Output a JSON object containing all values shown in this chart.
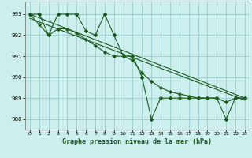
{
  "title": "Graphe pression niveau de la mer (hPa)",
  "bg_color": "#cceeed",
  "grid_color": "#99cccc",
  "line_color": "#1a5c1a",
  "xlim": [
    -0.5,
    23.5
  ],
  "ylim": [
    987.5,
    993.6
  ],
  "yticks": [
    988,
    989,
    990,
    991,
    992,
    993
  ],
  "xticks": [
    0,
    1,
    2,
    3,
    4,
    5,
    6,
    7,
    8,
    9,
    10,
    11,
    12,
    13,
    14,
    15,
    16,
    17,
    18,
    19,
    20,
    21,
    22,
    23
  ],
  "series_main": [
    993.0,
    993.0,
    992.0,
    993.0,
    993.0,
    993.0,
    992.2,
    992.0,
    993.0,
    992.0,
    991.0,
    991.0,
    990.0,
    988.0,
    989.0,
    989.0,
    989.0,
    989.0,
    989.0,
    989.0,
    989.0,
    988.0,
    989.0,
    989.0
  ],
  "series2": [
    993.0,
    992.5,
    992.0,
    992.3,
    992.3,
    992.1,
    991.8,
    991.5,
    991.2,
    991.0,
    991.0,
    990.8,
    990.2,
    989.8,
    989.5,
    989.3,
    989.2,
    989.1,
    989.0,
    989.0,
    989.0,
    988.8,
    989.0,
    989.0
  ],
  "trend1": [
    993.0,
    989.0
  ],
  "trend2": [
    992.8,
    988.9
  ],
  "trend_x": [
    0,
    23
  ]
}
